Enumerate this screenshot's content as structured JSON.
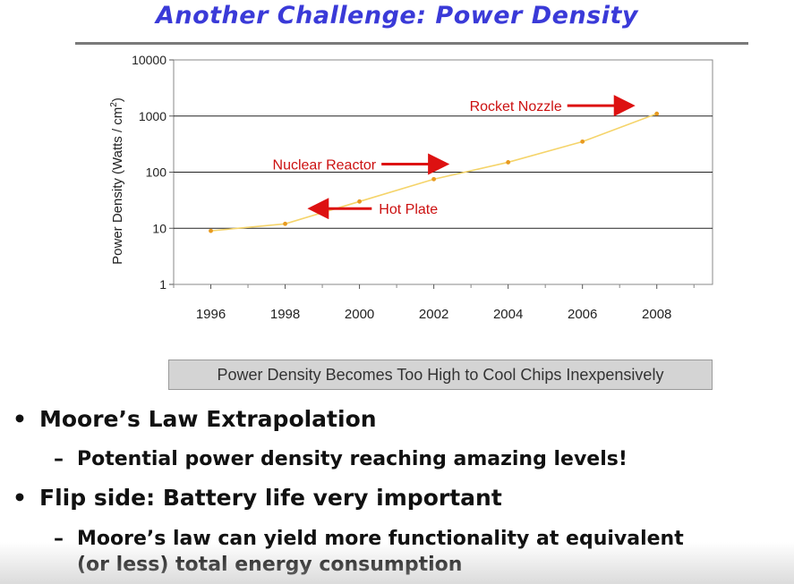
{
  "slide": {
    "title": "Another Challenge: Power Density",
    "caption": "Power Density Becomes Too High to Cool Chips Inexpensively",
    "bullets": [
      {
        "text": "Moore’s Law Extrapolation",
        "sub": [
          "Potential power density reaching amazing levels!"
        ]
      },
      {
        "text": "Flip side: Battery life very important",
        "sub": [
          "Moore’s law can yield more functionality at equivalent",
          "(or less) total energy consumption"
        ]
      }
    ],
    "bullet_glyph": "•",
    "dash_glyph": "–"
  },
  "chart_data": {
    "type": "line",
    "ylabel": "Power Density (Watts / cm²)",
    "ylabel_base": "Power Density (Watts / cm",
    "ylabel_sup": "2",
    "ylabel_tail": ")",
    "xlabel": "",
    "yscale": "log",
    "ylim": [
      1,
      10000
    ],
    "y_ticks": [
      1,
      10,
      100,
      1000,
      10000
    ],
    "y_tick_labels": [
      "1",
      "10",
      "100",
      "1000",
      "10000"
    ],
    "x_ticks": [
      1996,
      1998,
      2000,
      2002,
      2004,
      2006,
      2008
    ],
    "x_tick_labels": [
      "1996",
      "1998",
      "2000",
      "2002",
      "2004",
      "2006",
      "2008"
    ],
    "xlim": [
      1995,
      2009.5
    ],
    "grid": "horizontal",
    "series": [
      {
        "x": [
          1996,
          1998,
          2000,
          2002,
          2004,
          2006,
          2008
        ],
        "y": [
          9,
          12,
          30,
          75,
          150,
          350,
          1100
        ],
        "color": "#f5d46a",
        "marker_color": "#e89a20"
      }
    ],
    "annotations": [
      {
        "text": "Rocket Nozzle",
        "x": 2008,
        "y": 1100,
        "direction": "right"
      },
      {
        "text": "Nuclear Reactor",
        "x": 2003,
        "y": 100,
        "direction": "right"
      },
      {
        "text": "Hot Plate",
        "x": 1998.5,
        "y": 15,
        "direction": "left"
      }
    ],
    "arrow_color": "#dd1111",
    "label_color": "#cc1111"
  }
}
